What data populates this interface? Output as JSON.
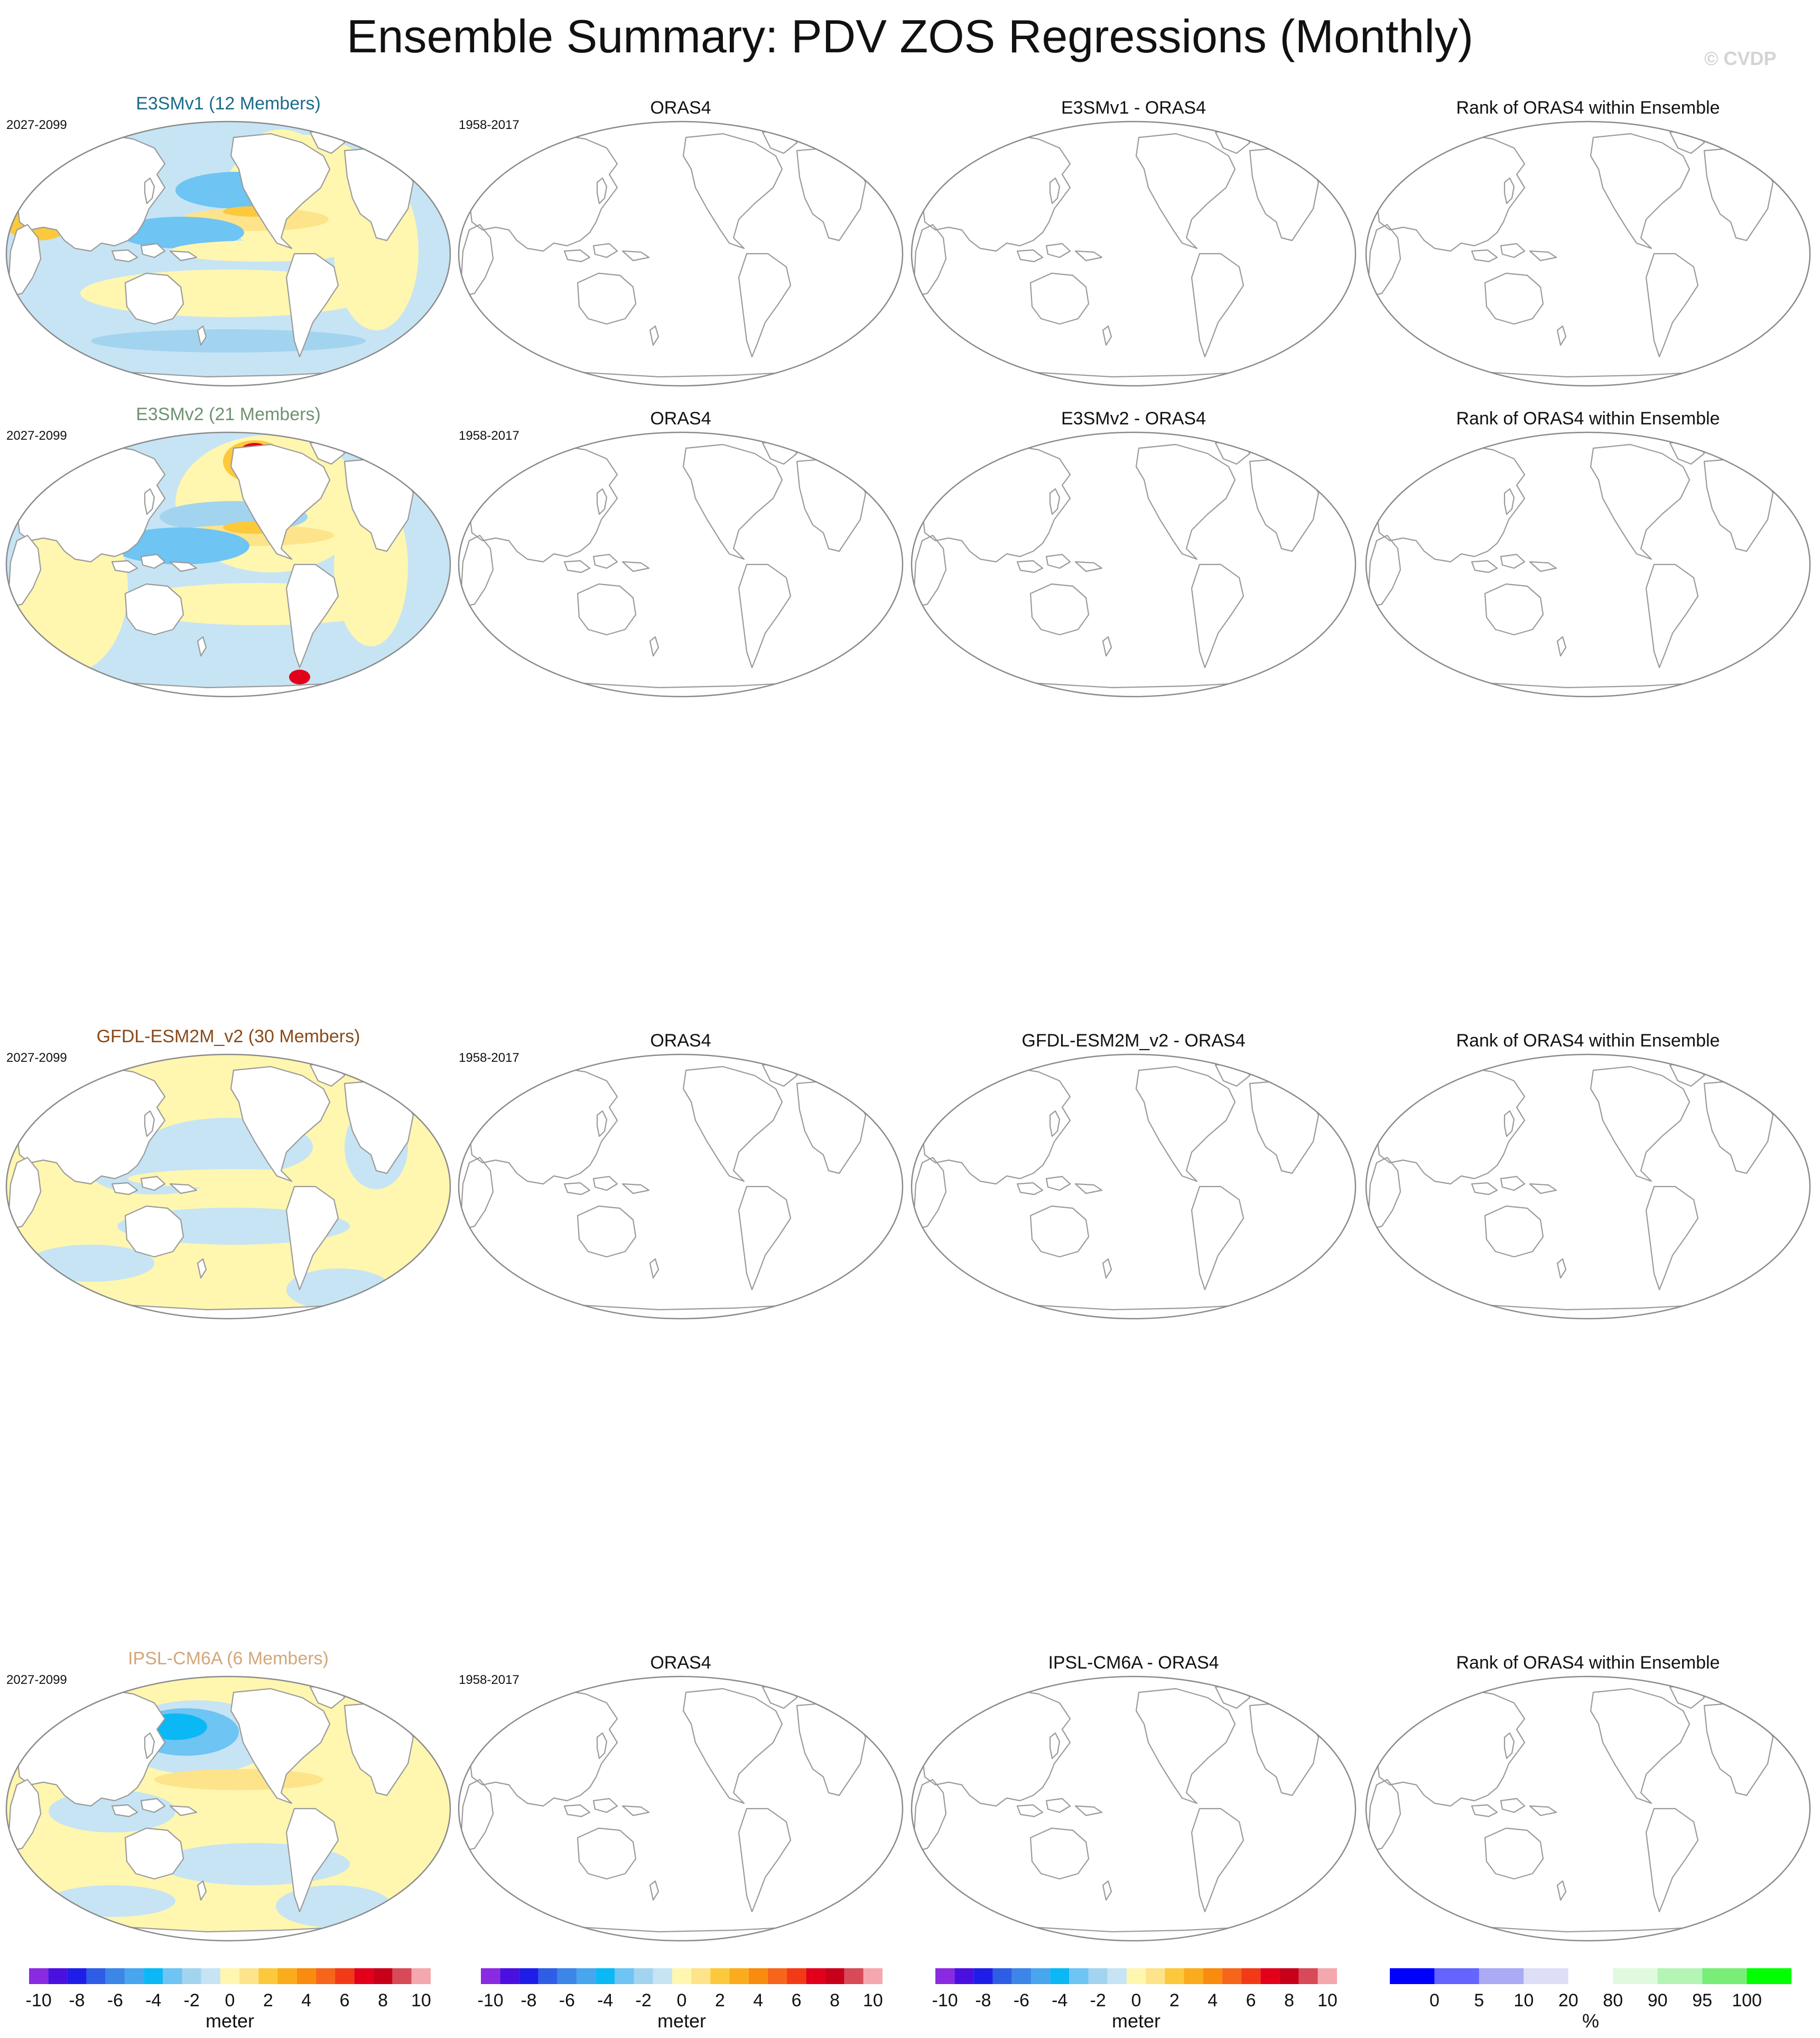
{
  "figure": {
    "title": "Ensemble Summary: PDV ZOS Regressions (Monthly)",
    "watermark": "© CVDP"
  },
  "rows": [
    {
      "model_title": "E3SMv1 (12 Members)",
      "model_color": "#1c6b8a",
      "model_years": "2027-2099",
      "obs_title": "ORAS4",
      "obs_years": "1958-2017",
      "diff_title": "E3SMv1 - ORAS4",
      "rank_title": "Rank of ORAS4 within Ensemble",
      "pattern": "e3smv1"
    },
    {
      "model_title": "E3SMv2 (21 Members)",
      "model_color": "#6f9271",
      "model_years": "2027-2099",
      "obs_title": "ORAS4",
      "obs_years": "1958-2017",
      "diff_title": "E3SMv2 - ORAS4",
      "rank_title": "Rank of ORAS4 within Ensemble",
      "pattern": "e3smv2"
    },
    {
      "model_title": "GFDL-ESM2M_v2 (30 Members)",
      "model_color": "#8a4a1a",
      "model_years": "2027-2099",
      "obs_title": "ORAS4",
      "obs_years": "1958-2017",
      "diff_title": "GFDL-ESM2M_v2 - ORAS4",
      "rank_title": "Rank of ORAS4 within Ensemble",
      "pattern": "gfdl"
    },
    {
      "model_title": "IPSL-CM6A (6 Members)",
      "model_color": "#d3a77a",
      "model_years": "2027-2099",
      "obs_title": "ORAS4",
      "obs_years": "1958-2017",
      "diff_title": "IPSL-CM6A - ORAS4",
      "rank_title": "Rank of ORAS4 within Ensemble",
      "pattern": "ipsl"
    }
  ],
  "colorbars": {
    "regression": {
      "unit": "meter",
      "labels": [
        "-10",
        "-8",
        "-6",
        "-4",
        "-2",
        "0",
        "2",
        "4",
        "6",
        "8",
        "10"
      ],
      "colors": [
        "#8a2be2",
        "#4b0fe0",
        "#1e1ee8",
        "#2e5de6",
        "#3c86e8",
        "#48a6ee",
        "#0ab8f5",
        "#6ec4f3",
        "#a2d4f0",
        "#c6e4f4",
        "#fff6b0",
        "#fde38a",
        "#fcc93c",
        "#fbac1c",
        "#f98b0e",
        "#f7651a",
        "#f23b16",
        "#e2001a",
        "#c8001a",
        "#d84a58",
        "#f4a8ae"
      ]
    },
    "rank": {
      "unit": "%",
      "labels": [
        "0",
        "5",
        "10",
        "20",
        "80",
        "90",
        "95",
        "100"
      ],
      "bounds": [
        0,
        5,
        10,
        20,
        80,
        90,
        95,
        100
      ],
      "colors": [
        "#0000ff",
        "#6464ff",
        "#aaaaf5",
        "#dedef8",
        "#ffffff",
        "#e0fae0",
        "#b4f4b4",
        "#78ee78",
        "#00ff00"
      ]
    }
  }
}
